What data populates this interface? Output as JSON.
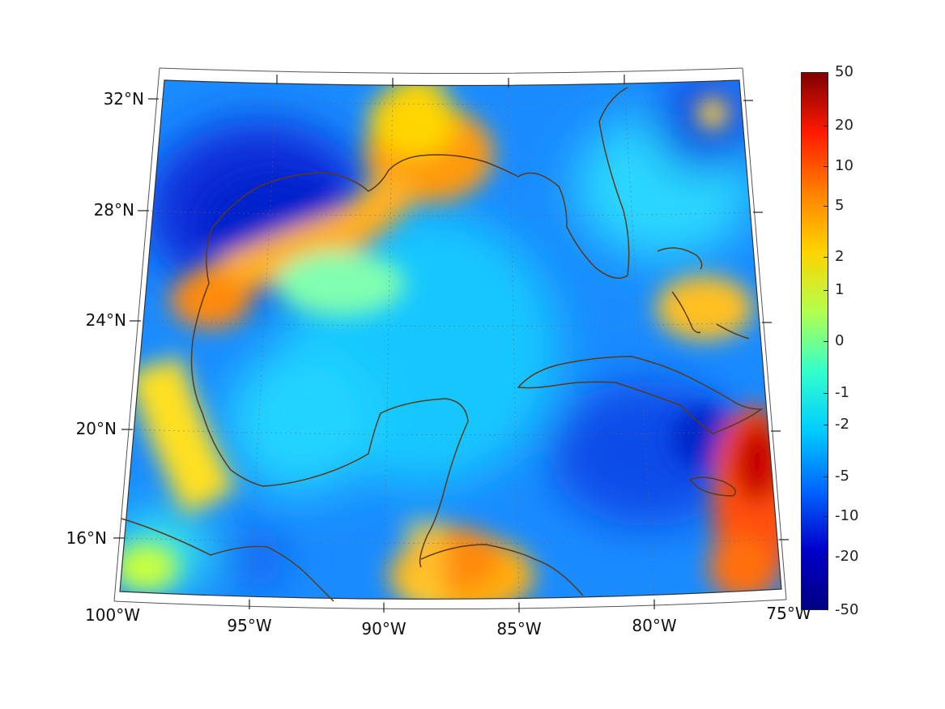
{
  "map": {
    "latitude_labels": [
      "32°N",
      "28°N",
      "24°N",
      "20°N",
      "16°N"
    ],
    "longitude_labels": [
      "100°W",
      "95°W",
      "90°W",
      "85°W",
      "80°W",
      "75°W"
    ]
  },
  "colorbar": {
    "ticks": [
      "50",
      "20",
      "10",
      "5",
      "2",
      "1",
      "0",
      "-1",
      "-2",
      "-5",
      "-10",
      "-20",
      "-50"
    ],
    "colors": [
      "#800000",
      "#ff1a00",
      "#ff8000",
      "#ffd400",
      "#b3ff4d",
      "#33ffcc",
      "#00ccff",
      "#0066ff",
      "#0000cc",
      "#000080"
    ]
  },
  "coastline_color": "#5a3a1a"
}
